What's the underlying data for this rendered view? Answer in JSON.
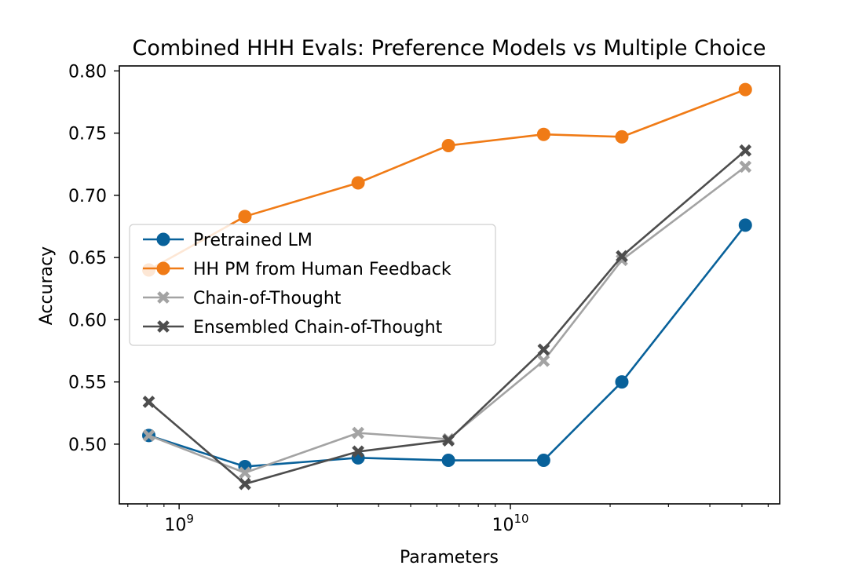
{
  "chart_data": {
    "type": "line",
    "title": "Combined HHH Evals: Preference Models vs Multiple Choice",
    "xlabel": "Parameters",
    "ylabel": "Accuracy",
    "xscale": "log",
    "xlim": [
      660000000,
      65000000000
    ],
    "ylim": [
      0.452,
      0.804
    ],
    "grid": false,
    "legend_position": "center-left",
    "x": [
      810000000,
      1580000000,
      3470000000,
      6500000000,
      12600000000,
      21700000000,
      51200000000
    ],
    "x_ticks": [
      {
        "value": 1000000000,
        "base": "10",
        "exp": "9"
      },
      {
        "value": 10000000000,
        "base": "10",
        "exp": "10"
      }
    ],
    "y_ticks": [
      {
        "value": 0.5,
        "label": "0.50"
      },
      {
        "value": 0.55,
        "label": "0.55"
      },
      {
        "value": 0.6,
        "label": "0.60"
      },
      {
        "value": 0.65,
        "label": "0.65"
      },
      {
        "value": 0.7,
        "label": "0.70"
      },
      {
        "value": 0.75,
        "label": "0.75"
      },
      {
        "value": 0.8,
        "label": "0.80"
      }
    ],
    "series": [
      {
        "name": "Pretrained LM",
        "color": "#08619a",
        "marker": "circle",
        "values": [
          0.507,
          0.482,
          0.489,
          0.487,
          0.487,
          0.55,
          0.676
        ]
      },
      {
        "name": "HH PM from Human Feedback",
        "color": "#f07b16",
        "marker": "circle",
        "values": [
          0.64,
          0.683,
          0.71,
          0.74,
          0.749,
          0.747,
          0.785
        ]
      },
      {
        "name": "Chain-of-Thought",
        "color": "#a3a3a3",
        "marker": "x",
        "values": [
          0.507,
          0.477,
          0.509,
          0.504,
          0.567,
          0.648,
          0.723
        ]
      },
      {
        "name": "Ensembled Chain-of-Thought",
        "color": "#4d4d4d",
        "marker": "x",
        "values": [
          0.534,
          0.468,
          0.494,
          0.503,
          0.576,
          0.651,
          0.736
        ]
      }
    ]
  }
}
